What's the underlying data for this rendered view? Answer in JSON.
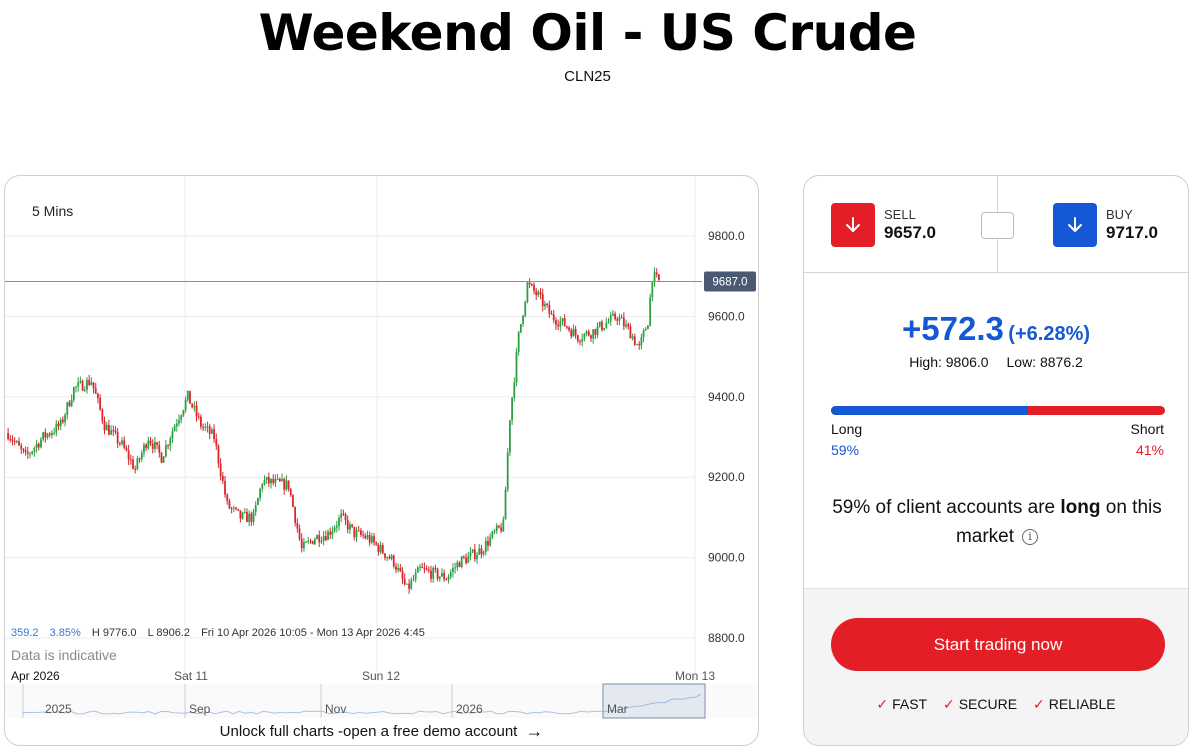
{
  "header": {
    "title": "Weekend Oil - US Crude",
    "subtitle": "CLN25"
  },
  "chart": {
    "interval": "5 Mins",
    "current_price_tag": "9687.0",
    "stats": {
      "change": "359.2",
      "change_pct": "3.85%",
      "high": "H 9776.0",
      "low": "L 8906.2",
      "range": "Fri 10 Apr 2026 10:05 - Mon 13 Apr 2026 4:45"
    },
    "indicative_note": "Data is indicative",
    "navigator_labels": [
      "2025",
      "Sep",
      "Nov",
      "2026",
      "Mar"
    ],
    "unlock_text": "Unlock full charts -open a free demo account",
    "unlock_arrow_icon": "arrow-right-icon",
    "colors": {
      "up": "#2e9e44",
      "down": "#d9262d",
      "navigator": "#a9c4e8"
    }
  },
  "chart_data": {
    "type": "candlestick",
    "interval": "5 Mins",
    "x_tick_labels": [
      "Apr 2026",
      "Sat 11",
      "Sun 12",
      "Mon 13"
    ],
    "y_tick_labels": [
      "9800.0",
      "9600.0",
      "9400.0",
      "9200.0",
      "9000.0",
      "8800.0"
    ],
    "ylim": [
      8780,
      9850
    ],
    "last_price": 9687.0,
    "high": 9776.0,
    "low": 8906.2,
    "close_path": [
      {
        "i": 0,
        "p": 9310
      },
      {
        "i": 8,
        "p": 9250
      },
      {
        "i": 16,
        "p": 9300
      },
      {
        "i": 24,
        "p": 9330
      },
      {
        "i": 30,
        "p": 9420
      },
      {
        "i": 38,
        "p": 9440
      },
      {
        "i": 44,
        "p": 9330
      },
      {
        "i": 52,
        "p": 9280
      },
      {
        "i": 58,
        "p": 9220
      },
      {
        "i": 64,
        "p": 9300
      },
      {
        "i": 70,
        "p": 9250
      },
      {
        "i": 76,
        "p": 9330
      },
      {
        "i": 82,
        "p": 9400
      },
      {
        "i": 88,
        "p": 9330
      },
      {
        "i": 94,
        "p": 9300
      },
      {
        "i": 100,
        "p": 9130
      },
      {
        "i": 106,
        "p": 9100
      },
      {
        "i": 112,
        "p": 9100
      },
      {
        "i": 116,
        "p": 9190
      },
      {
        "i": 122,
        "p": 9185
      },
      {
        "i": 128,
        "p": 9180
      },
      {
        "i": 134,
        "p": 9020
      },
      {
        "i": 140,
        "p": 9050
      },
      {
        "i": 146,
        "p": 9060
      },
      {
        "i": 152,
        "p": 9100
      },
      {
        "i": 158,
        "p": 9060
      },
      {
        "i": 164,
        "p": 9050
      },
      {
        "i": 170,
        "p": 9020
      },
      {
        "i": 176,
        "p": 8990
      },
      {
        "i": 182,
        "p": 8920
      },
      {
        "i": 188,
        "p": 8970
      },
      {
        "i": 194,
        "p": 8960
      },
      {
        "i": 200,
        "p": 8950
      },
      {
        "i": 206,
        "p": 8990
      },
      {
        "i": 210,
        "p": 9000
      },
      {
        "i": 216,
        "p": 9020
      },
      {
        "i": 222,
        "p": 9060
      },
      {
        "i": 226,
        "p": 9080
      },
      {
        "i": 229,
        "p": 9350
      },
      {
        "i": 233,
        "p": 9550
      },
      {
        "i": 237,
        "p": 9680
      },
      {
        "i": 242,
        "p": 9650
      },
      {
        "i": 248,
        "p": 9600
      },
      {
        "i": 254,
        "p": 9580
      },
      {
        "i": 260,
        "p": 9550
      },
      {
        "i": 266,
        "p": 9560
      },
      {
        "i": 272,
        "p": 9580
      },
      {
        "i": 278,
        "p": 9600
      },
      {
        "i": 284,
        "p": 9560
      },
      {
        "i": 288,
        "p": 9520
      },
      {
        "i": 292,
        "p": 9590
      },
      {
        "i": 294,
        "p": 9700
      },
      {
        "i": 297,
        "p": 9687
      }
    ]
  },
  "trade": {
    "sell": {
      "label": "SELL",
      "price": "9657.0"
    },
    "buy": {
      "label": "BUY",
      "price": "9717.0"
    },
    "change_abs": "+572.3",
    "change_pct": "(+6.28%)",
    "high": "High: 9806.0",
    "low": "Low: 8876.2",
    "sentiment": {
      "long_label": "Long",
      "short_label": "Short",
      "long_pct": "59%",
      "short_pct": "41%",
      "long_fraction": 0.59,
      "text_prefix": "59% of client accounts are",
      "text_emph": "long",
      "text_suffix": "on this market"
    },
    "cta_label": "Start trading now",
    "features": [
      "FAST",
      "SECURE",
      "RELIABLE"
    ],
    "colors": {
      "sell": "#e31e26",
      "buy": "#1558d6"
    }
  }
}
